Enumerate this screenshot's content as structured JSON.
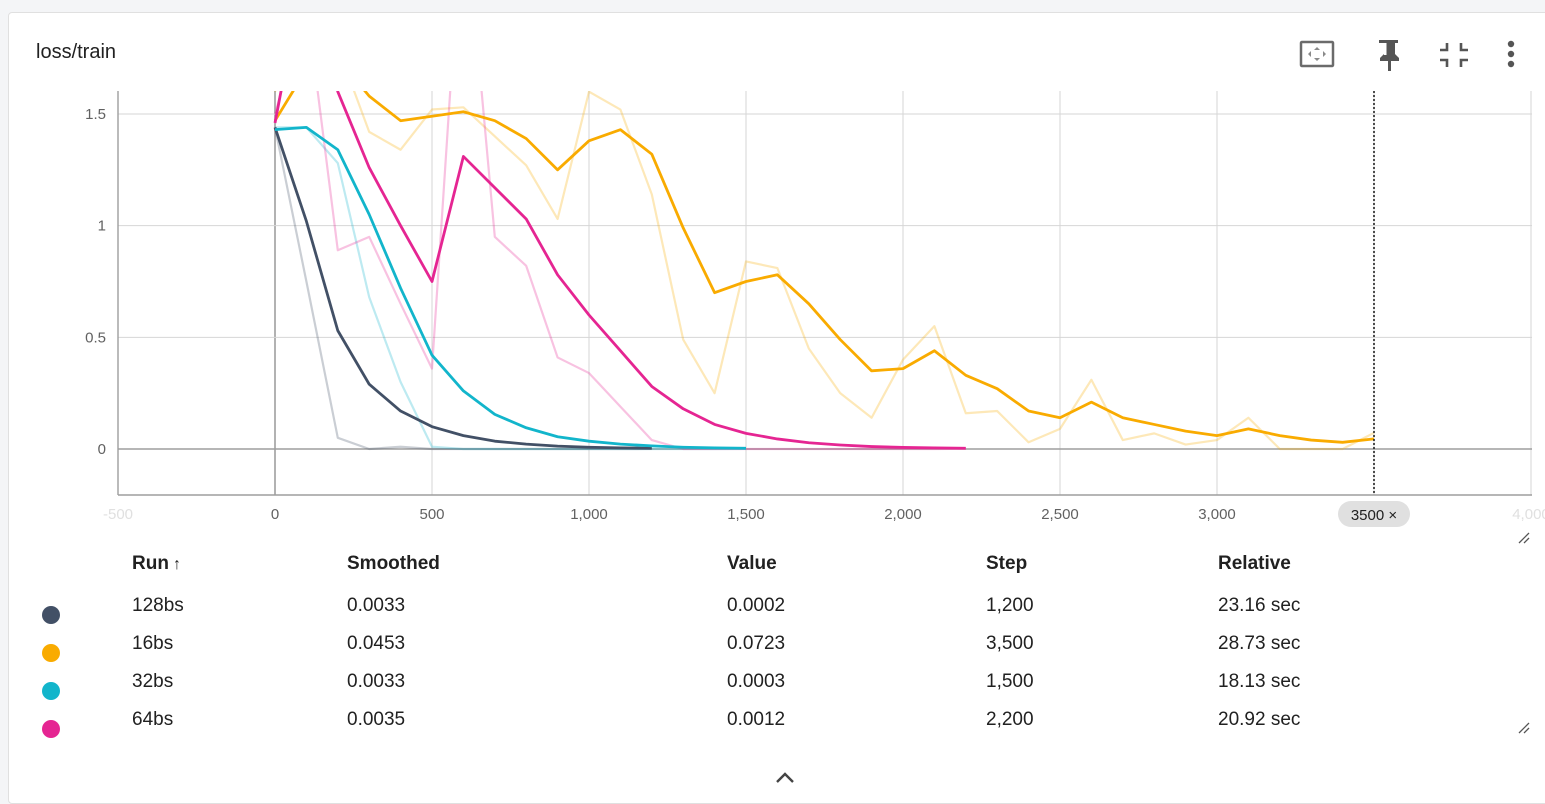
{
  "card": {
    "title": "loss/train"
  },
  "toolbar": [
    {
      "name": "fit-domain-icon"
    },
    {
      "name": "pin-icon"
    },
    {
      "name": "collapse-card-icon"
    },
    {
      "name": "more-menu-icon"
    }
  ],
  "chart_data": {
    "type": "line",
    "title": "loss/train",
    "xlabel": "",
    "ylabel": "",
    "xlim": [
      -500,
      4000
    ],
    "ylim": [
      -0.2,
      1.6
    ],
    "x_ticks": [
      -500,
      0,
      500,
      1000,
      1500,
      2000,
      2500,
      3000,
      3500,
      4000
    ],
    "x_tick_labels": [
      "-500",
      "0",
      "500",
      "1,000",
      "1,500",
      "2,000",
      "2,500",
      "3,000",
      "",
      "4,000"
    ],
    "y_ticks": [
      0,
      0.5,
      1,
      1.5
    ],
    "y_tick_labels": [
      "0",
      "0.5",
      "1",
      "1.5"
    ],
    "grid": true,
    "hover_step_label": "3500 ×",
    "hover_step": 3500,
    "series": [
      {
        "name": "128bs",
        "color": "#425066",
        "x": [
          0,
          100,
          200,
          300,
          400,
          500,
          600,
          700,
          800,
          900,
          1000,
          1100,
          1200
        ],
        "raw": [
          1.44,
          0.75,
          0.05,
          0.0,
          0.01,
          0.0,
          0.0,
          0.0,
          0.0,
          0.0,
          0.0,
          0.0,
          0.0002
        ],
        "smoothed": [
          1.44,
          1.02,
          0.53,
          0.29,
          0.17,
          0.1,
          0.06,
          0.035,
          0.022,
          0.013,
          0.008,
          0.005,
          0.0033
        ]
      },
      {
        "name": "16bs",
        "color": "#f9ab00",
        "x": [
          0,
          100,
          200,
          300,
          400,
          500,
          600,
          700,
          800,
          900,
          1000,
          1100,
          1200,
          1300,
          1400,
          1500,
          1600,
          1700,
          1800,
          1900,
          2000,
          2100,
          2200,
          2300,
          2400,
          2500,
          2600,
          2700,
          2800,
          2900,
          3000,
          3100,
          3200,
          3300,
          3400,
          3500
        ],
        "raw": [
          1.6,
          1.9,
          1.8,
          1.42,
          1.34,
          1.52,
          1.53,
          1.4,
          1.27,
          1.03,
          1.6,
          1.52,
          1.14,
          0.49,
          0.25,
          0.84,
          0.81,
          0.45,
          0.25,
          0.14,
          0.4,
          0.55,
          0.16,
          0.17,
          0.03,
          0.09,
          0.31,
          0.04,
          0.07,
          0.02,
          0.04,
          0.14,
          0.0,
          0.0,
          0.0,
          0.0723
        ],
        "smoothed": [
          1.47,
          1.7,
          1.75,
          1.58,
          1.47,
          1.49,
          1.51,
          1.47,
          1.39,
          1.25,
          1.38,
          1.43,
          1.32,
          0.99,
          0.7,
          0.75,
          0.78,
          0.65,
          0.49,
          0.35,
          0.36,
          0.44,
          0.33,
          0.27,
          0.17,
          0.14,
          0.21,
          0.14,
          0.11,
          0.08,
          0.06,
          0.09,
          0.06,
          0.04,
          0.03,
          0.0453
        ]
      },
      {
        "name": "32bs",
        "color": "#12b5cb",
        "x": [
          0,
          100,
          200,
          300,
          400,
          500,
          600,
          700,
          800,
          900,
          1000,
          1100,
          1200,
          1300,
          1400,
          1500
        ],
        "raw": [
          1.44,
          1.44,
          1.28,
          0.68,
          0.3,
          0.01,
          0.0,
          0.0,
          0.0,
          0.0,
          0.0,
          0.0,
          0.0,
          0.0,
          0.0,
          0.0003
        ],
        "smoothed": [
          1.43,
          1.44,
          1.34,
          1.05,
          0.72,
          0.42,
          0.26,
          0.155,
          0.095,
          0.055,
          0.035,
          0.022,
          0.014,
          0.008,
          0.005,
          0.0033
        ]
      },
      {
        "name": "64bs",
        "color": "#e52592",
        "x": [
          0,
          100,
          200,
          300,
          400,
          500,
          600,
          700,
          800,
          900,
          1000,
          1100,
          1200,
          1300,
          1400,
          1500,
          1600,
          1700,
          1800,
          1900,
          2000,
          2100,
          2200
        ],
        "raw": [
          1.5,
          2.0,
          0.89,
          0.95,
          0.65,
          0.36,
          2.5,
          0.95,
          0.82,
          0.41,
          0.34,
          0.19,
          0.04,
          0.0,
          0.0,
          0.0,
          0.0,
          0.0,
          0.0,
          0.0,
          0.0,
          0.0,
          0.0012
        ],
        "smoothed": [
          1.46,
          2.2,
          1.6,
          1.26,
          1.0,
          0.75,
          1.31,
          1.17,
          1.03,
          0.78,
          0.6,
          0.44,
          0.28,
          0.18,
          0.11,
          0.07,
          0.045,
          0.028,
          0.018,
          0.011,
          0.007,
          0.005,
          0.0035
        ]
      }
    ]
  },
  "table": {
    "headers": {
      "run": "Run",
      "sort_icon": "↑",
      "smoothed": "Smoothed",
      "value": "Value",
      "step": "Step",
      "relative": "Relative"
    },
    "rows": [
      {
        "run": "128bs",
        "color": "#425066",
        "smoothed": "0.0033",
        "value": "0.0002",
        "step": "1,200",
        "relative": "23.16 sec"
      },
      {
        "run": "16bs",
        "color": "#f9ab00",
        "smoothed": "0.0453",
        "value": "0.0723",
        "step": "3,500",
        "relative": "28.73 sec"
      },
      {
        "run": "32bs",
        "color": "#12b5cb",
        "smoothed": "0.0033",
        "value": "0.0003",
        "step": "1,500",
        "relative": "18.13 sec"
      },
      {
        "run": "64bs",
        "color": "#e52592",
        "smoothed": "0.0035",
        "value": "0.0012",
        "step": "2,200",
        "relative": "20.92 sec"
      }
    ]
  }
}
